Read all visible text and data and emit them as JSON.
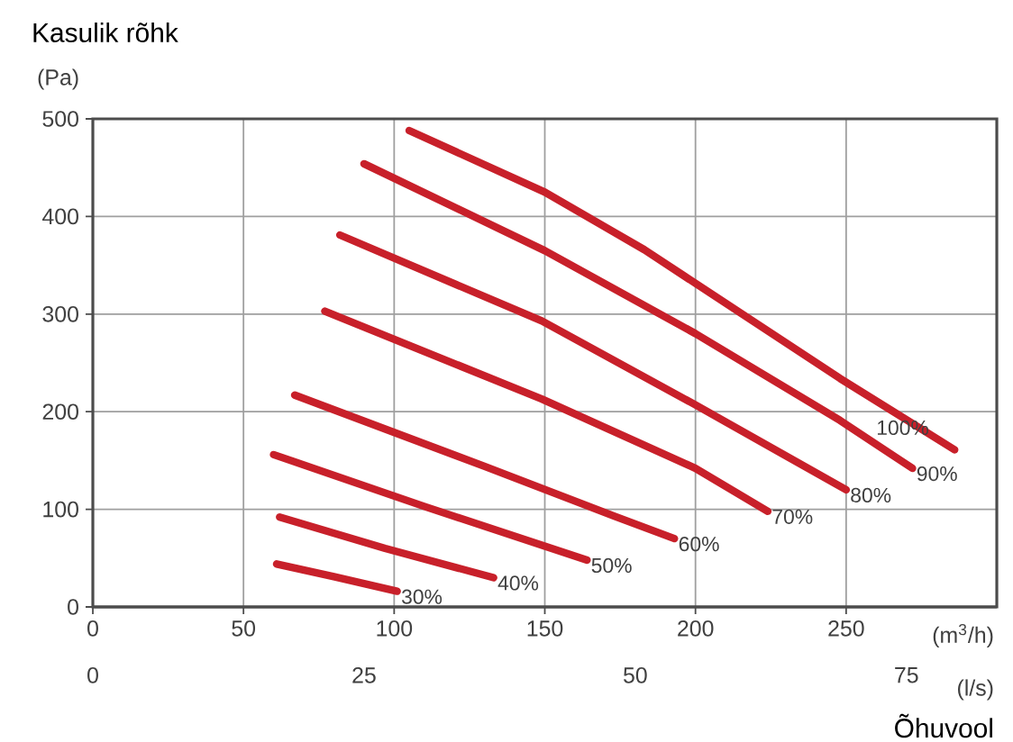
{
  "chart_data": {
    "type": "line",
    "ylabel": "Kasulik rõhk",
    "xlabel": "Õhuvool",
    "annotations": [
      "(Pa)",
      "(m$^{3}$/h)",
      "(l/s)"
    ],
    "xlim": [
      0,
      300
    ],
    "xticks": [
      0,
      50,
      100,
      150,
      200,
      250
    ],
    "x2lim": [
      0,
      83.33
    ],
    "x2ticks": [
      0,
      25,
      50,
      75
    ],
    "ylim": [
      0,
      500
    ],
    "yticks": [
      0,
      100,
      200,
      300,
      400,
      500
    ],
    "grid": true,
    "marker": "none",
    "line_style": "solid",
    "series": [
      {
        "name": "30%",
        "color": "#c8202a",
        "x": [
          61,
          80,
          101
        ],
        "values": [
          44,
          31,
          16
        ]
      },
      {
        "name": "40%",
        "color": "#c8202a",
        "x": [
          62,
          97,
          133
        ],
        "values": [
          92,
          60,
          30
        ]
      },
      {
        "name": "50%",
        "color": "#c8202a",
        "x": [
          60,
          110,
          164
        ],
        "values": [
          156,
          103,
          48
        ]
      },
      {
        "name": "60%",
        "color": "#c8202a",
        "x": [
          67,
          130,
          173,
          193
        ],
        "values": [
          217,
          144,
          93,
          70
        ]
      },
      {
        "name": "70%",
        "color": "#c8202a",
        "x": [
          77,
          149,
          200,
          224
        ],
        "values": [
          303,
          213,
          142,
          98
        ]
      },
      {
        "name": "80%",
        "color": "#c8202a",
        "x": [
          82,
          149,
          200,
          250
        ],
        "values": [
          381,
          293,
          207,
          120
        ]
      },
      {
        "name": "90%",
        "color": "#c8202a",
        "x": [
          90,
          150,
          200,
          248,
          272
        ],
        "values": [
          454,
          365,
          280,
          191,
          142
        ]
      },
      {
        "name": "100%",
        "color": "#c8202a",
        "x": [
          105,
          150,
          183,
          248,
          286
        ],
        "values": [
          488,
          425,
          366,
          234,
          161
        ]
      }
    ]
  }
}
